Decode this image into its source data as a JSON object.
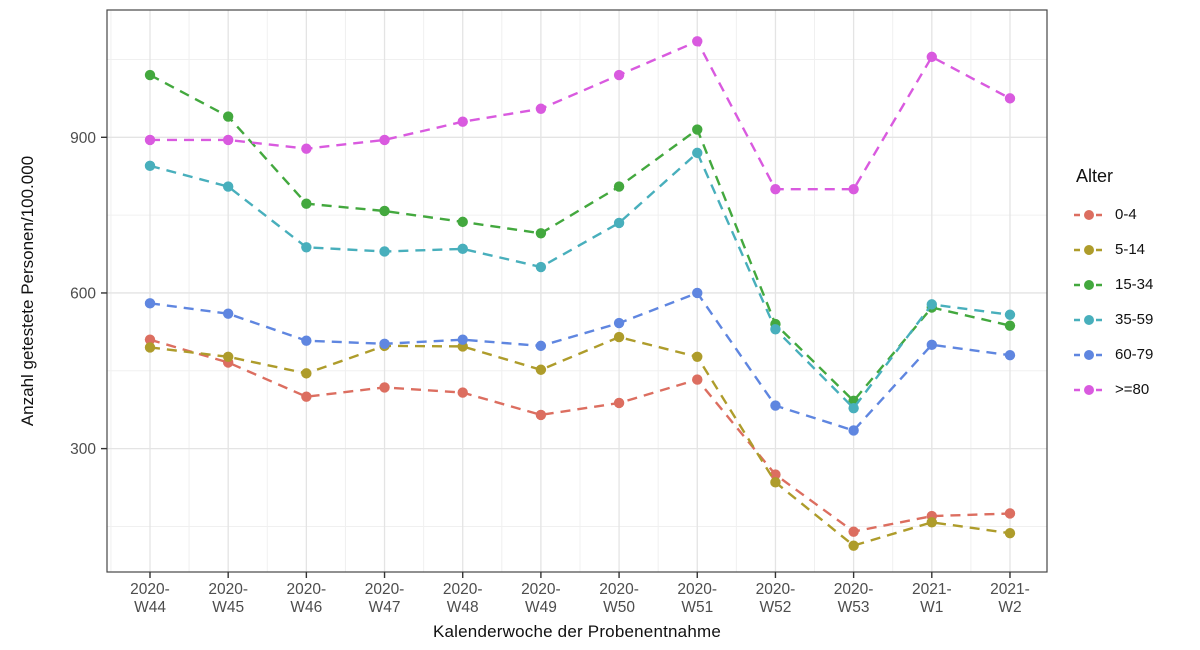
{
  "chart_data": {
    "type": "line",
    "title": "",
    "xlabel": "Kalenderwoche der Probenentnahme",
    "ylabel": "Anzahl getestete Personen/100.000",
    "categories": [
      "2020-W44",
      "2020-W45",
      "2020-W46",
      "2020-W47",
      "2020-W48",
      "2020-W49",
      "2020-W50",
      "2020-W51",
      "2020-W52",
      "2020-W53",
      "2021-W1",
      "2021-W2"
    ],
    "y_ticks": [
      300,
      600,
      900
    ],
    "y_minor_ticks": [
      150,
      450,
      750,
      1050
    ],
    "ylim": [
      60,
      1145
    ],
    "grid": true,
    "line_style": "dashed",
    "legend_title": "Alter",
    "legend_position": "right",
    "series": [
      {
        "name": "0-4",
        "color": "#DC6E60",
        "values": [
          510,
          466,
          400,
          418,
          408,
          365,
          388,
          433,
          250,
          140,
          170,
          175
        ]
      },
      {
        "name": "5-14",
        "color": "#AE9C2B",
        "values": [
          495,
          477,
          445,
          498,
          497,
          452,
          515,
          477,
          235,
          113,
          158,
          137
        ]
      },
      {
        "name": "15-34",
        "color": "#43A83E",
        "values": [
          1020,
          940,
          772,
          758,
          737,
          715,
          805,
          915,
          540,
          392,
          572,
          537
        ]
      },
      {
        "name": "35-59",
        "color": "#48AFBC",
        "values": [
          845,
          805,
          688,
          680,
          685,
          650,
          735,
          870,
          530,
          378,
          578,
          558
        ]
      },
      {
        "name": "60-79",
        "color": "#5F86E0",
        "values": [
          580,
          560,
          508,
          502,
          510,
          498,
          542,
          600,
          383,
          335,
          500,
          480
        ]
      },
      {
        "name": ">=80",
        "color": "#D95ADF",
        "values": [
          895,
          895,
          878,
          895,
          930,
          955,
          1020,
          1085,
          800,
          800,
          1055,
          975
        ]
      }
    ],
    "colors": {
      "grid_major": "#e4e4e4",
      "grid_minor": "#f0f0f0",
      "panel_border": "#474747",
      "tick_text": "#4d4d4d"
    }
  }
}
